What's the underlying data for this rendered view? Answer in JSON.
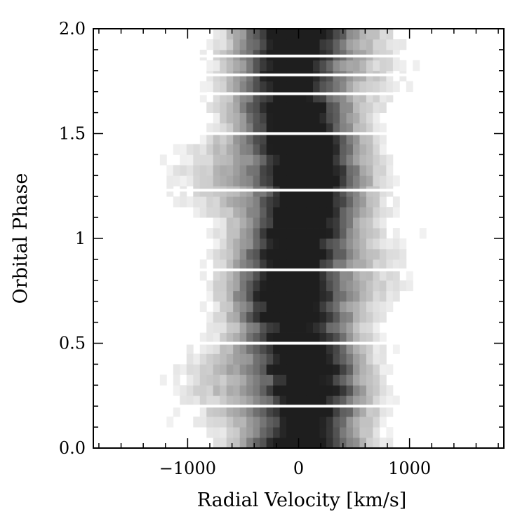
{
  "chart_data": {
    "type": "heatmap",
    "title": "",
    "xlabel": "Radial Velocity [km/s]",
    "ylabel": "Orbital Phase",
    "xlim": [
      -1850,
      1850
    ],
    "ylim": [
      0.0,
      2.0
    ],
    "x_ticks": [
      {
        "value": -1000,
        "label": "−1000"
      },
      {
        "value": 0,
        "label": "0"
      },
      {
        "value": 1000,
        "label": "1000"
      }
    ],
    "y_ticks": [
      {
        "value": 0.0,
        "label": "0.0"
      },
      {
        "value": 0.5,
        "label": "0.5"
      },
      {
        "value": 1.0,
        "label": "1"
      },
      {
        "value": 1.5,
        "label": "1.5"
      },
      {
        "value": 2.0,
        "label": "2.0"
      }
    ],
    "colormap": "grayscale (darker = stronger emission)",
    "phase_bins": 40,
    "velocity_bin_kms": 60,
    "gap_phases": [
      0.2,
      0.5,
      0.85,
      1.23,
      1.5,
      1.69,
      1.78,
      1.87
    ],
    "grid": false,
    "legend": "none"
  }
}
